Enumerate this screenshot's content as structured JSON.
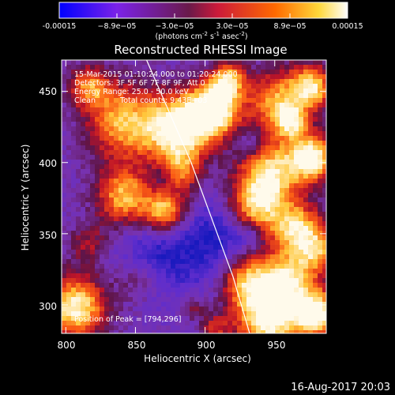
{
  "chart_data": {
    "type": "heatmap",
    "title": "Reconstructed RHESSI Image",
    "xlabel": "Heliocentric X (arcsec)",
    "ylabel": "Heliocentric Y (arcsec)",
    "xlim": [
      797,
      987
    ],
    "ylim": [
      280,
      472
    ],
    "x_ticks": [
      800,
      850,
      900,
      950
    ],
    "y_ticks": [
      300,
      350,
      400,
      450
    ],
    "colorbar": {
      "ticks": [
        -0.00015,
        -8.9e-05,
        -3e-05,
        3e-05,
        8.9e-05,
        0.00015
      ],
      "tick_labels": [
        "-0.00015",
        "−8.9e−05",
        "−3.0e−05",
        "3.0e−05",
        "8.9e−05",
        "0.00015"
      ],
      "unit_text": "(photons cm",
      "unit_sup1": "-2",
      "unit_mid": " s",
      "unit_sup2": "-1",
      "unit_mid2": " asec",
      "unit_sup3": "-2",
      "unit_end": ")",
      "colors": [
        "#0000ff",
        "#7b22e8",
        "#cc1a3a",
        "#ff6a00",
        "#ffd83a",
        "#ffffff"
      ]
    },
    "annotations": {
      "line1": "15-Mar-2015 01:10:24.000 to 01:20:24.000",
      "line2": "Detectors: 3F 5F 6F 7F 8F 9F, Att 0",
      "line3": "Energy Range: 25.0 - 50.0 keV",
      "line4_a": "Clean",
      "line4_b": "Total counts: 9.43E+03",
      "peak": "Position of Peak = [794,296]"
    },
    "limb_curve": [
      [
        858,
        472
      ],
      [
        890,
        400
      ],
      [
        905,
        360
      ],
      [
        920,
        320
      ],
      [
        932,
        280
      ]
    ],
    "grid": false
  },
  "footer": {
    "timestamp": "16-Aug-2017 20:03"
  }
}
